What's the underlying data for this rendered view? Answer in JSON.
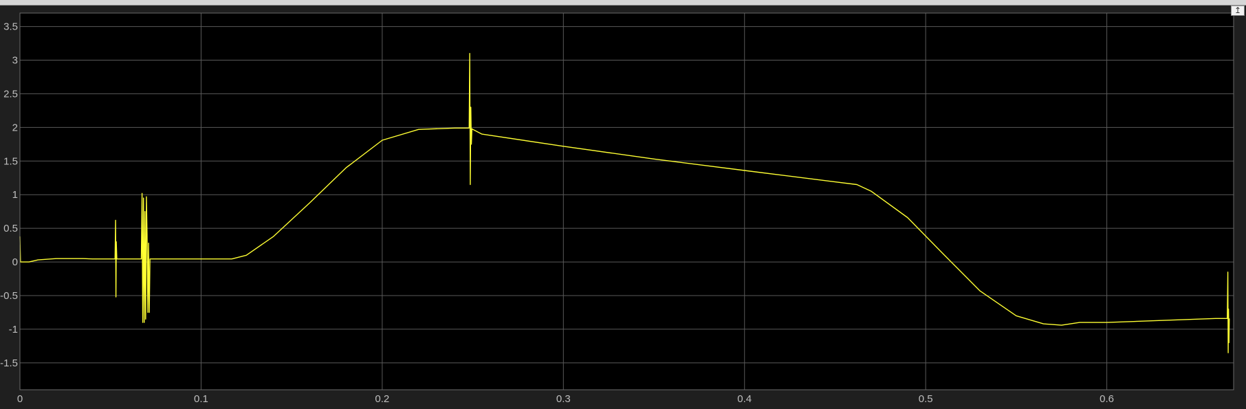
{
  "window": {
    "undock_glyph": "↥",
    "undock_icon": "undock-arrow-icon"
  },
  "colors": {
    "background": "#1f1f1f",
    "axes": "#000000",
    "grid": "#5a5a5a",
    "signal": "#ffff33",
    "tick_label": "#bfbfbf"
  },
  "chart_data": {
    "type": "line",
    "title": "",
    "xlabel": "",
    "ylabel": "",
    "xlim": [
      0,
      0.67
    ],
    "ylim": [
      -1.9,
      3.7
    ],
    "grid": true,
    "xticks": [
      0,
      0.1,
      0.2,
      0.3,
      0.4,
      0.5,
      0.6
    ],
    "xtick_labels": [
      "0",
      "0.1",
      "0.2",
      "0.3",
      "0.4",
      "0.5",
      "0.6"
    ],
    "yticks": [
      -1.5,
      -1,
      -0.5,
      0,
      0.5,
      1,
      1.5,
      2,
      2.5,
      3,
      3.5
    ],
    "ytick_labels": [
      "-1.5",
      "-1",
      "-0.5",
      "0",
      "0.5",
      "1",
      "1.5",
      "2",
      "2.5",
      "3",
      "3.5"
    ],
    "series": [
      {
        "color": "#ffff33",
        "x": [
          0,
          0.0003,
          0.0006,
          0.005,
          0.01,
          0.02,
          0.03,
          0.035,
          0.04,
          0.0525,
          0.0528,
          0.053,
          0.0532,
          0.0535,
          0.067,
          0.0674,
          0.0678,
          0.0682,
          0.0686,
          0.069,
          0.0694,
          0.0698,
          0.0702,
          0.0706,
          0.071,
          0.0714,
          0.0718,
          0.09,
          0.11,
          0.117,
          0.125,
          0.14,
          0.16,
          0.18,
          0.2,
          0.22,
          0.24,
          0.248,
          0.2483,
          0.2486,
          0.2489,
          0.2492,
          0.2495,
          0.25,
          0.255,
          0.3,
          0.35,
          0.4,
          0.45,
          0.462,
          0.47,
          0.49,
          0.51,
          0.53,
          0.55,
          0.565,
          0.575,
          0.585,
          0.6,
          0.63,
          0.66,
          0.6665,
          0.6668,
          0.667,
          0.6672,
          0.6674,
          0.6676
        ],
        "y": [
          0.38,
          0.0,
          0.0,
          0.0,
          0.03,
          0.05,
          0.05,
          0.05,
          0.045,
          0.045,
          0.62,
          -0.52,
          0.3,
          0.045,
          0.045,
          1.02,
          -0.9,
          0.95,
          -0.9,
          0.75,
          -0.85,
          0.97,
          0.4,
          -0.75,
          0.28,
          -0.75,
          0.045,
          0.045,
          0.045,
          0.045,
          0.1,
          0.38,
          0.88,
          1.4,
          1.81,
          1.97,
          1.99,
          1.99,
          3.1,
          1.15,
          2.3,
          1.75,
          1.98,
          1.97,
          1.9,
          1.72,
          1.53,
          1.36,
          1.19,
          1.15,
          1.05,
          0.66,
          0.11,
          -0.43,
          -0.8,
          -0.92,
          -0.94,
          -0.9,
          -0.9,
          -0.87,
          -0.84,
          -0.84,
          -0.15,
          -1.35,
          -0.7,
          -1.2,
          -0.84
        ]
      }
    ]
  }
}
